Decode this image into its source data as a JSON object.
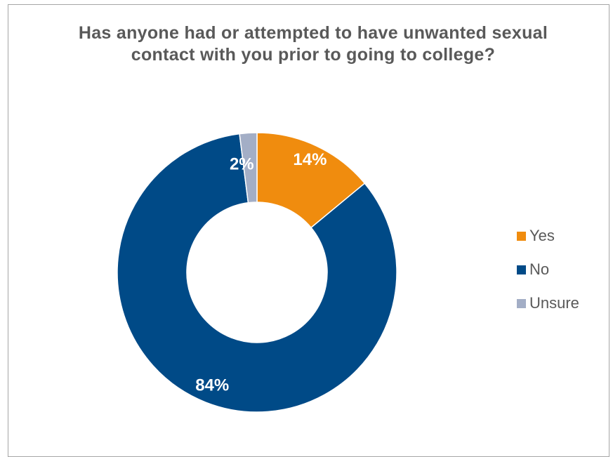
{
  "chart_data": {
    "type": "pie",
    "subtype": "donut",
    "title": "Has anyone had or attempted to have unwanted sexual contact with you prior to going to college?",
    "categories": [
      "Yes",
      "No",
      "Unsure"
    ],
    "values": [
      14,
      84,
      2
    ],
    "value_labels": [
      "14%",
      "84%",
      "2%"
    ],
    "colors": [
      "#f08c0e",
      "#004a87",
      "#a3aec6"
    ],
    "legend_position": "right",
    "label_color": "#ffffff"
  }
}
